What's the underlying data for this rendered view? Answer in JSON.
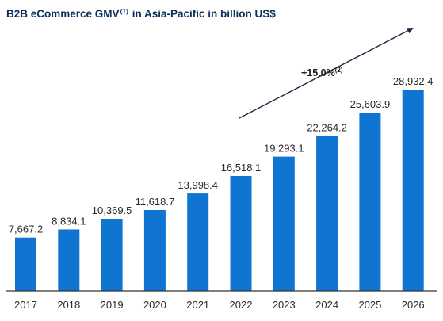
{
  "chart_data": {
    "type": "bar",
    "title": "B2B eCommerce GMV",
    "title_superscript": "(1)",
    "title_suffix": "in Asia-Pacific in billion US$",
    "categories": [
      "2017",
      "2018",
      "2019",
      "2020",
      "2021",
      "2022",
      "2023",
      "2024",
      "2025",
      "2026"
    ],
    "values": [
      7667.2,
      8834.1,
      10369.5,
      11618.7,
      13998.4,
      16518.1,
      19293.1,
      22264.2,
      25603.9,
      28932.4
    ],
    "value_labels": [
      "7,667.2",
      "8,834.1",
      "10,369.5",
      "11,618.7",
      "13,998.4",
      "16,518.1",
      "19,293.1",
      "22,264.2",
      "25,603.9",
      "28,932.4"
    ],
    "ylim": [
      0,
      29900
    ],
    "grid": false,
    "legend": "none",
    "annotation": {
      "text": "+15.0%",
      "superscript": "(2)"
    },
    "colors": {
      "bar": "#0f75d1",
      "axis": "#333333",
      "title": "#0b2f5b"
    }
  }
}
